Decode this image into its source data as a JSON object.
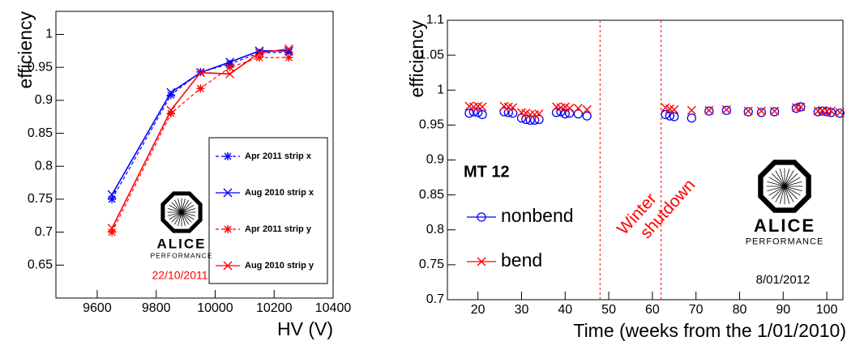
{
  "chart_data": [
    {
      "type": "line",
      "x_label": "HV (V)",
      "y_label": "efficiency",
      "x": [
        9650,
        9850,
        9950,
        10050,
        10150,
        10250
      ],
      "series": [
        {
          "name": "Apr 2011 strip x",
          "color": "#0000ff",
          "dash": true,
          "values": [
            0.75,
            0.908,
            0.943,
            0.955,
            0.972,
            0.973
          ]
        },
        {
          "name": "Aug 2010 strip x",
          "color": "#0000ff",
          "dash": false,
          "values": [
            0.757,
            0.912,
            0.942,
            0.958,
            0.975,
            0.975
          ]
        },
        {
          "name": "Apr 2011 strip y",
          "color": "#ff0000",
          "dash": true,
          "values": [
            0.7,
            0.88,
            0.918,
            0.95,
            0.965,
            0.965
          ]
        },
        {
          "name": "Aug 2010 strip y",
          "color": "#ff0000",
          "dash": false,
          "values": [
            0.706,
            0.885,
            0.942,
            0.94,
            0.972,
            0.978
          ]
        }
      ],
      "xlim": [
        9460,
        10400
      ],
      "ylim": [
        0.6,
        1.035
      ],
      "xticks": [
        9600,
        9800,
        10000,
        10200,
        10400
      ],
      "yticks": [
        0.65,
        0.7,
        0.75,
        0.8,
        0.85,
        0.9,
        0.95,
        1
      ],
      "legend": "lower right",
      "logo": {
        "title": "ALICE",
        "subtitle": "PERFORMANCE"
      },
      "date": "22/10/2011"
    },
    {
      "type": "scatter",
      "x_label": "Time (weeks from the 1/01/2010)",
      "y_label": "efficiency",
      "x": [
        18,
        19,
        20,
        21,
        26,
        27,
        28,
        30,
        31,
        32,
        33,
        34,
        38,
        39,
        40,
        41,
        43,
        45,
        63,
        64,
        65,
        69,
        73,
        77,
        82,
        85,
        88,
        93,
        94,
        98,
        99,
        100,
        101,
        103
      ],
      "series": [
        {
          "name": "nonbend",
          "color": "#0000ff",
          "marker": "circle",
          "values": [
            0.967,
            0.969,
            0.968,
            0.965,
            0.969,
            0.968,
            0.967,
            0.96,
            0.958,
            0.957,
            0.957,
            0.958,
            0.968,
            0.969,
            0.966,
            0.967,
            0.966,
            0.963,
            0.965,
            0.963,
            0.962,
            0.96,
            0.97,
            0.971,
            0.969,
            0.968,
            0.969,
            0.974,
            0.976,
            0.969,
            0.97,
            0.969,
            0.968,
            0.967
          ]
        },
        {
          "name": "bend",
          "color": "#ff0000",
          "marker": "x",
          "values": [
            0.977,
            0.976,
            0.977,
            0.976,
            0.977,
            0.976,
            0.975,
            0.968,
            0.967,
            0.965,
            0.965,
            0.966,
            0.976,
            0.975,
            0.976,
            0.974,
            0.974,
            0.972,
            0.975,
            0.973,
            0.972,
            0.971,
            0.971,
            0.972,
            0.97,
            0.97,
            0.97,
            0.975,
            0.976,
            0.97,
            0.971,
            0.97,
            0.97,
            0.968
          ]
        }
      ],
      "xlim": [
        13,
        103.7
      ],
      "ylim": [
        0.7,
        1.1
      ],
      "xticks": [
        20,
        30,
        40,
        50,
        60,
        70,
        80,
        90,
        100
      ],
      "yticks": [
        0.7,
        0.75,
        0.8,
        0.85,
        0.9,
        0.95,
        1,
        1.05,
        1.1
      ],
      "vlines": [
        48,
        62
      ],
      "annotation": [
        "Winter",
        "shutdown"
      ],
      "panel_label": "MT 12",
      "legend": "lower left",
      "logo": {
        "title": "ALICE",
        "subtitle": "PERFORMANCE"
      },
      "date": "8/01/2012"
    }
  ]
}
